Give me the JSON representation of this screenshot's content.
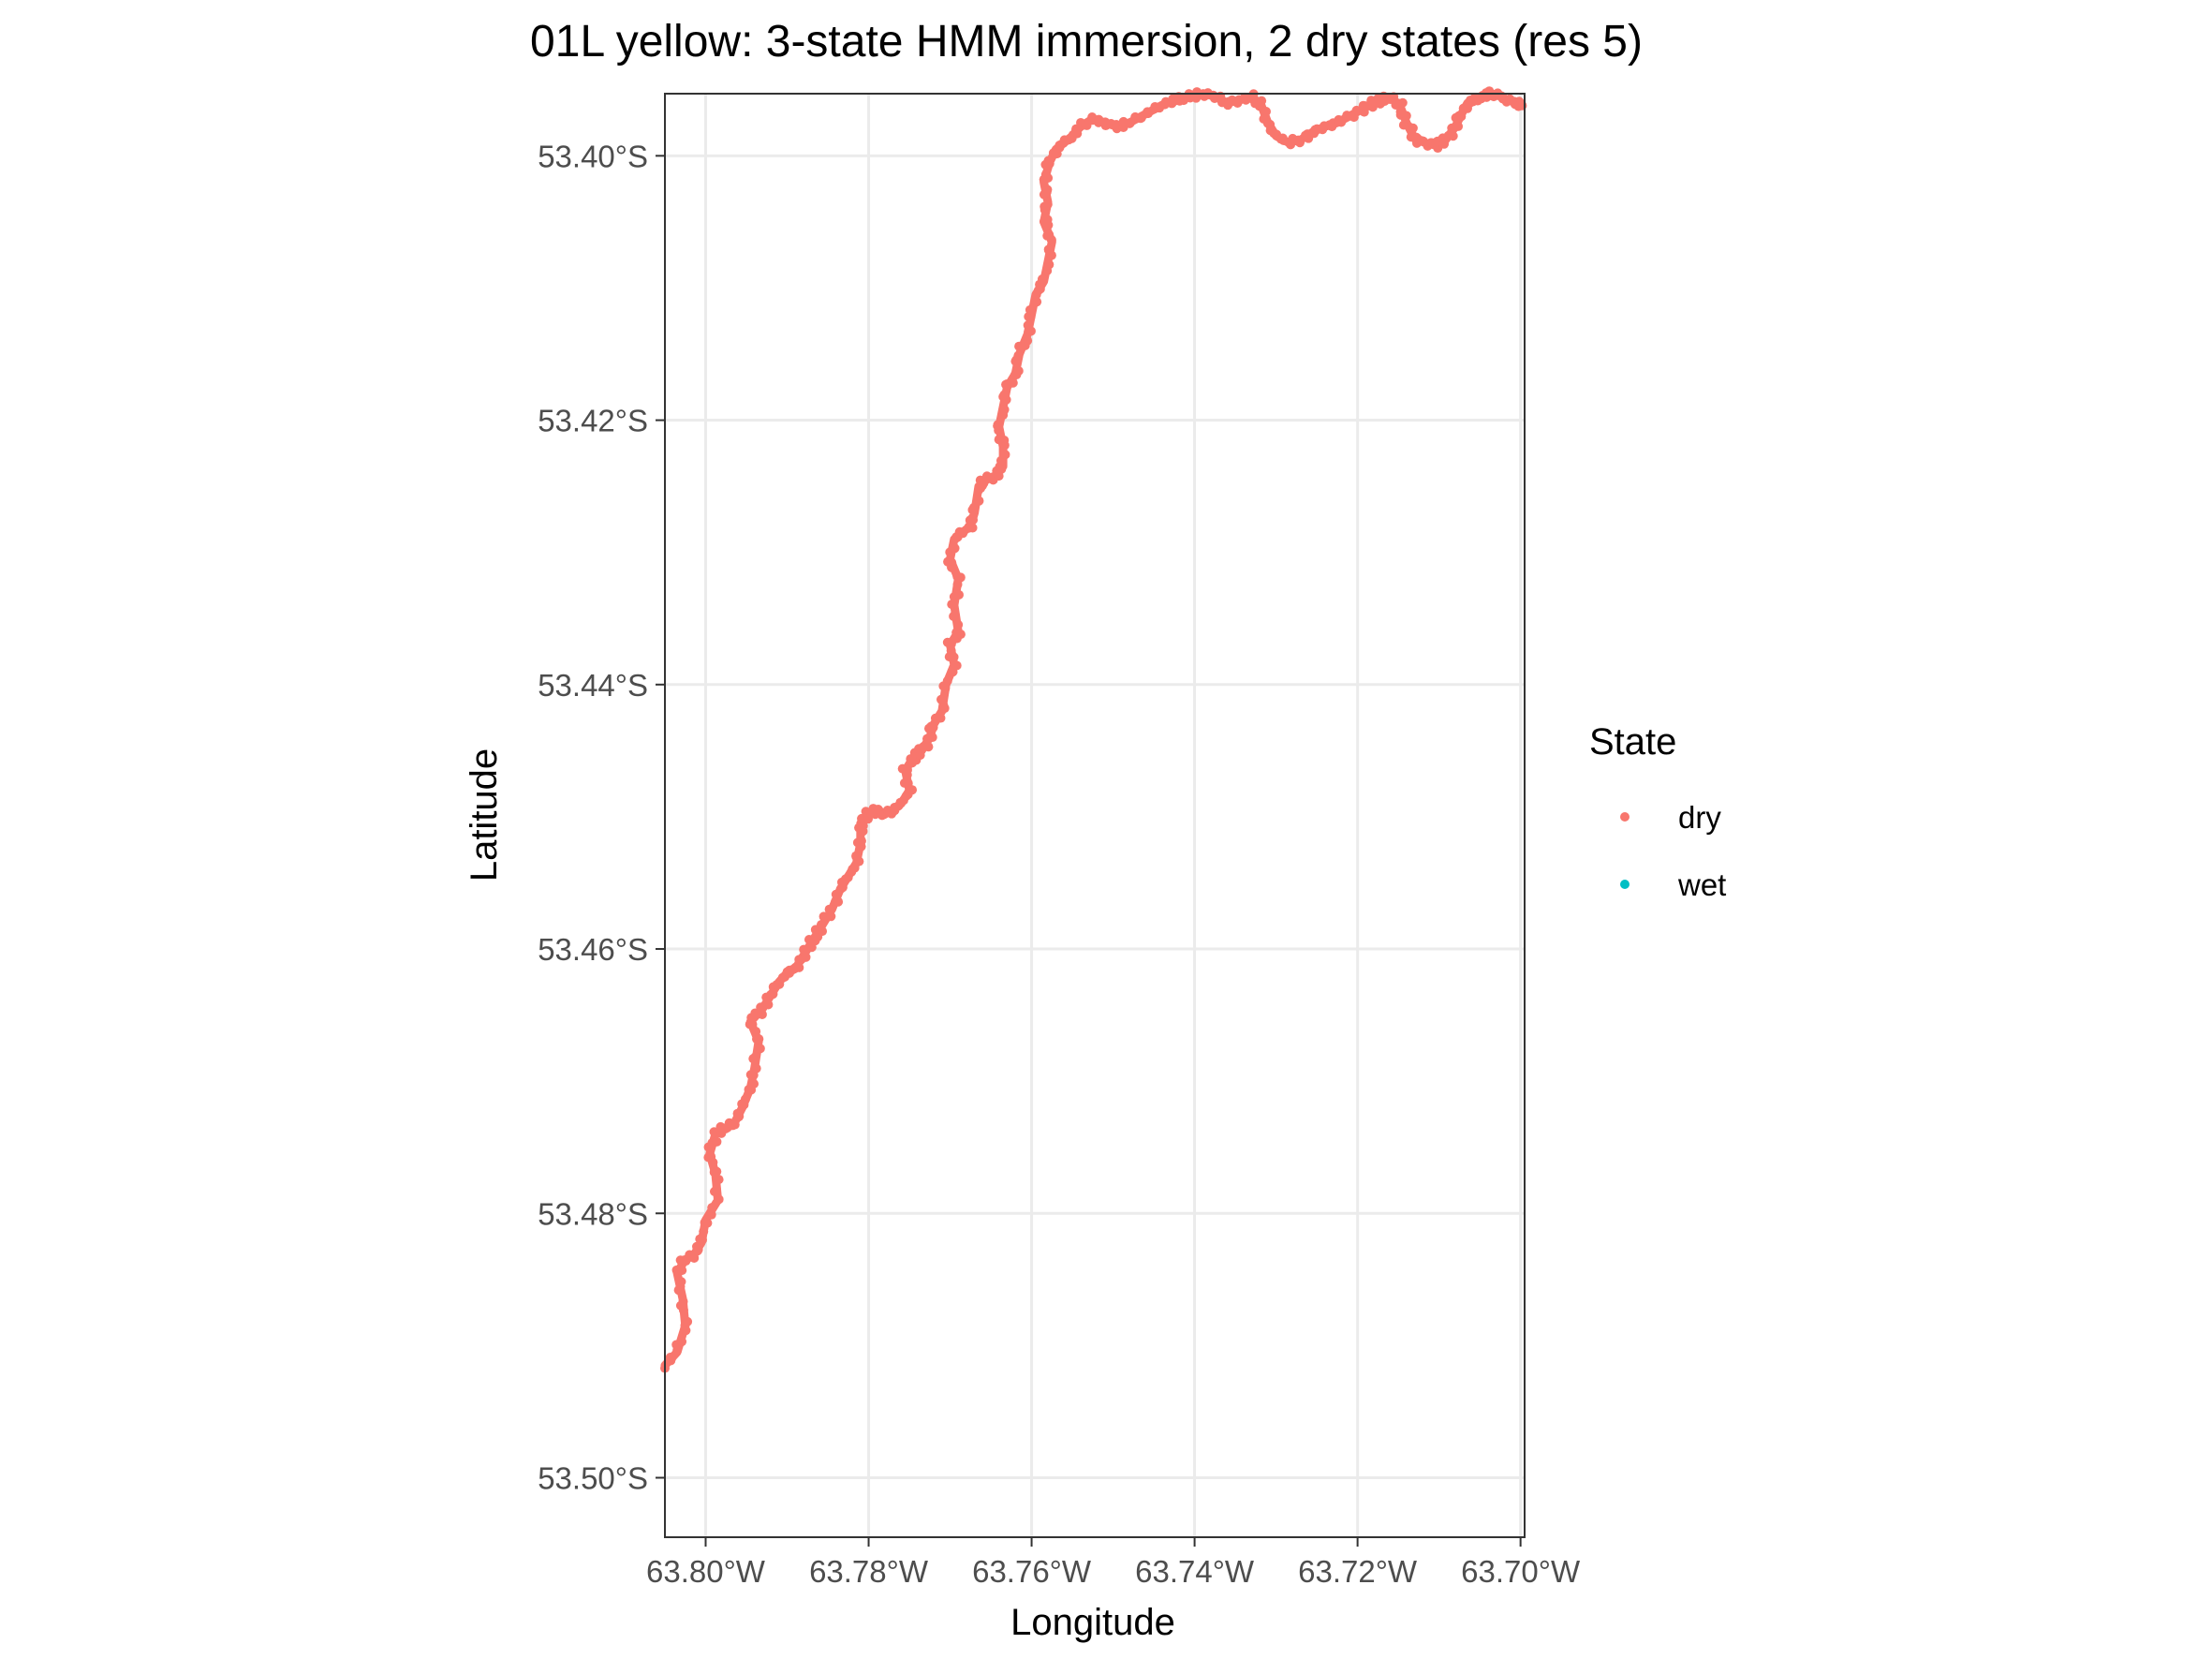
{
  "chart_data": {
    "type": "scatter",
    "title": "01L yellow: 3-state HMM immersion, 2 dry states (res 5)",
    "xlabel": "Longitude",
    "ylabel": "Latitude",
    "xlim": [
      -63.805,
      -63.6995
    ],
    "ylim": [
      -53.5045,
      -53.3953
    ],
    "x_ticks": [
      -63.8,
      -63.78,
      -63.76,
      -63.74,
      -63.72,
      -63.7
    ],
    "x_tick_labels": [
      "63.80°W",
      "63.78°W",
      "63.76°W",
      "63.74°W",
      "63.72°W",
      "63.70°W"
    ],
    "y_ticks": [
      -53.4,
      -53.42,
      -53.44,
      -53.46,
      -53.48,
      -53.5
    ],
    "y_tick_labels": [
      "53.40°S",
      "53.42°S",
      "53.44°S",
      "53.46°S",
      "53.48°S",
      "53.50°S"
    ],
    "grid": true,
    "legend": {
      "title": "State",
      "placement": "right",
      "entries": [
        {
          "label": "dry",
          "color": "#F8766D"
        },
        {
          "label": "wet",
          "color": "#00BFC4"
        }
      ]
    },
    "series": [
      {
        "name": "dry",
        "color": "#F8766D",
        "points": [
          [
            -63.805,
            -53.4915
          ],
          [
            -63.8035,
            -53.4905
          ],
          [
            -63.8025,
            -53.4885
          ],
          [
            -63.8028,
            -53.4865
          ],
          [
            -63.8035,
            -53.4845
          ],
          [
            -63.8025,
            -53.4835
          ],
          [
            -63.8015,
            -53.4832
          ],
          [
            -63.8005,
            -53.4822
          ],
          [
            -63.8,
            -53.4805
          ],
          [
            -63.7985,
            -53.479
          ],
          [
            -63.7988,
            -53.477
          ],
          [
            -63.7995,
            -53.4755
          ],
          [
            -63.7988,
            -53.474
          ],
          [
            -63.7975,
            -53.4735
          ],
          [
            -63.7965,
            -53.4732
          ],
          [
            -63.7955,
            -53.472
          ],
          [
            -63.7945,
            -53.4705
          ],
          [
            -63.794,
            -53.469
          ],
          [
            -63.7935,
            -53.467
          ],
          [
            -63.7945,
            -53.4655
          ],
          [
            -63.793,
            -53.4645
          ],
          [
            -63.792,
            -53.4635
          ],
          [
            -63.791,
            -53.4625
          ],
          [
            -63.79,
            -53.4618
          ],
          [
            -63.789,
            -53.4615
          ],
          [
            -63.788,
            -53.4605
          ],
          [
            -63.787,
            -53.4595
          ],
          [
            -63.786,
            -53.4585
          ],
          [
            -63.7845,
            -53.457
          ],
          [
            -63.7835,
            -53.4555
          ],
          [
            -63.7825,
            -53.4545
          ],
          [
            -63.7815,
            -53.4535
          ],
          [
            -63.781,
            -53.452
          ],
          [
            -63.781,
            -53.4505
          ],
          [
            -63.78,
            -53.4498
          ],
          [
            -63.779,
            -53.4495
          ],
          [
            -63.778,
            -53.4498
          ],
          [
            -63.777,
            -53.4495
          ],
          [
            -63.776,
            -53.449
          ],
          [
            -63.775,
            -53.448
          ],
          [
            -63.7755,
            -53.4465
          ],
          [
            -63.7745,
            -53.4455
          ],
          [
            -63.7735,
            -53.445
          ],
          [
            -63.7725,
            -53.444
          ],
          [
            -63.772,
            -53.443
          ],
          [
            -63.771,
            -53.442
          ],
          [
            -63.7705,
            -53.44
          ],
          [
            -63.7695,
            -53.4385
          ],
          [
            -63.77,
            -53.437
          ],
          [
            -63.769,
            -53.436
          ],
          [
            -63.7695,
            -53.434
          ],
          [
            -63.769,
            -53.432
          ],
          [
            -63.77,
            -53.4305
          ],
          [
            -63.7695,
            -53.429
          ],
          [
            -63.7685,
            -53.4285
          ],
          [
            -63.7675,
            -53.428
          ],
          [
            -63.767,
            -53.427
          ],
          [
            -63.7665,
            -53.425
          ],
          [
            -63.7655,
            -53.4245
          ],
          [
            -63.7645,
            -53.4242
          ],
          [
            -63.7635,
            -53.4235
          ],
          [
            -63.7635,
            -53.422
          ],
          [
            -63.764,
            -53.4205
          ],
          [
            -63.7635,
            -53.419
          ],
          [
            -63.763,
            -53.4175
          ],
          [
            -63.762,
            -53.4165
          ],
          [
            -63.7615,
            -53.415
          ],
          [
            -63.7605,
            -53.4135
          ],
          [
            -63.76,
            -53.412
          ],
          [
            -63.7595,
            -53.4105
          ],
          [
            -63.7585,
            -53.4095
          ],
          [
            -63.758,
            -53.408
          ],
          [
            -63.7575,
            -53.4065
          ],
          [
            -63.7585,
            -53.405
          ],
          [
            -63.758,
            -53.4035
          ],
          [
            -63.7585,
            -53.402
          ],
          [
            -63.7578,
            -53.4005
          ],
          [
            -63.757,
            -53.3995
          ],
          [
            -63.756,
            -53.399
          ],
          [
            -63.755,
            -53.3985
          ],
          [
            -63.754,
            -53.3978
          ],
          [
            -63.7525,
            -53.3972
          ],
          [
            -63.751,
            -53.3975
          ],
          [
            -63.7495,
            -53.3978
          ],
          [
            -63.748,
            -53.3975
          ],
          [
            -63.7465,
            -53.397
          ],
          [
            -63.745,
            -53.3965
          ],
          [
            -63.7435,
            -53.396
          ],
          [
            -63.742,
            -53.3958
          ],
          [
            -63.7405,
            -53.3955
          ],
          [
            -63.739,
            -53.3953
          ],
          [
            -63.7375,
            -53.3955
          ],
          [
            -63.736,
            -53.396
          ],
          [
            -63.7345,
            -53.3958
          ],
          [
            -63.733,
            -53.3955
          ],
          [
            -63.7318,
            -53.3962
          ],
          [
            -63.731,
            -53.3975
          ],
          [
            -63.73,
            -53.3985
          ],
          [
            -63.7285,
            -53.399
          ],
          [
            -63.727,
            -53.3988
          ],
          [
            -63.7255,
            -53.3982
          ],
          [
            -63.724,
            -53.3978
          ],
          [
            -63.7225,
            -53.3975
          ],
          [
            -63.721,
            -53.397
          ],
          [
            -63.7195,
            -53.3965
          ],
          [
            -63.718,
            -53.396
          ],
          [
            -63.717,
            -53.3958
          ],
          [
            -63.716,
            -53.3956
          ],
          [
            -63.7148,
            -53.3962
          ],
          [
            -63.714,
            -53.3975
          ],
          [
            -63.713,
            -53.3987
          ],
          [
            -63.7118,
            -53.399
          ],
          [
            -63.7105,
            -53.3992
          ],
          [
            -63.7092,
            -53.3988
          ],
          [
            -63.708,
            -53.3978
          ],
          [
            -63.7072,
            -53.3968
          ],
          [
            -63.7065,
            -53.396
          ],
          [
            -63.7055,
            -53.3958
          ],
          [
            -63.7045,
            -53.3955
          ],
          [
            -63.7035,
            -53.3953
          ],
          [
            -63.7025,
            -53.3955
          ],
          [
            -63.7015,
            -53.3958
          ],
          [
            -63.7005,
            -53.396
          ],
          [
            -63.6998,
            -53.3962
          ]
        ]
      },
      {
        "name": "wet",
        "color": "#00BFC4",
        "points": []
      }
    ]
  }
}
